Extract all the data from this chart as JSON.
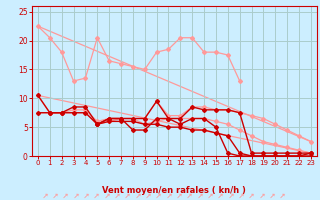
{
  "bg_color": "#cceeff",
  "grid_color": "#aacccc",
  "line_color_dark": "#cc0000",
  "line_color_light": "#ff9999",
  "xlabel": "Vent moyen/en rafales ( kn/h )",
  "xlim": [
    -0.5,
    23.5
  ],
  "ylim": [
    0,
    26
  ],
  "yticks": [
    0,
    5,
    10,
    15,
    20,
    25
  ],
  "xticks": [
    0,
    1,
    2,
    3,
    4,
    5,
    6,
    7,
    8,
    9,
    10,
    11,
    12,
    13,
    14,
    15,
    16,
    17,
    18,
    19,
    20,
    21,
    22,
    23
  ],
  "trend1_x": [
    0,
    23
  ],
  "trend1_y": [
    22.5,
    2.5
  ],
  "trend2_x": [
    0,
    23
  ],
  "trend2_y": [
    10.5,
    0.5
  ],
  "light_curve1_x": [
    0,
    1,
    2,
    3,
    4,
    5,
    6,
    7,
    8,
    9,
    10,
    11,
    12,
    13,
    14,
    15,
    16,
    17
  ],
  "light_curve1_y": [
    22.5,
    20.5,
    18.0,
    13.0,
    13.5,
    20.5,
    16.5,
    16.0,
    15.5,
    15.0,
    18.0,
    18.5,
    20.5,
    20.5,
    18.0,
    18.0,
    17.5,
    13.0
  ],
  "dark_curve1_x": [
    0,
    1,
    2,
    3,
    4,
    5,
    6,
    7,
    8,
    9,
    10,
    11,
    12,
    13,
    14,
    15,
    16,
    17,
    18,
    19,
    20,
    21,
    22,
    23
  ],
  "dark_curve1_y": [
    10.5,
    7.5,
    7.5,
    8.5,
    8.5,
    5.5,
    6.5,
    6.5,
    6.5,
    6.5,
    9.5,
    6.5,
    6.5,
    8.5,
    8.0,
    8.0,
    8.0,
    7.5,
    0.5,
    0.5,
    0.5,
    0.5,
    0.5,
    0.5
  ],
  "dark_curve2_x": [
    5,
    6,
    7,
    8,
    9,
    10,
    11,
    12,
    13,
    14,
    15,
    16,
    17,
    18,
    19,
    20,
    21,
    22,
    23
  ],
  "dark_curve2_y": [
    5.5,
    6.5,
    6.5,
    4.5,
    4.5,
    6.5,
    6.5,
    5.5,
    6.5,
    6.5,
    5.0,
    0.5,
    0.0,
    0.0,
    0.0,
    0.0,
    0.0,
    0.0,
    0.0
  ],
  "dark_curve3_x": [
    0,
    1,
    2,
    3,
    4,
    5,
    6,
    7,
    8,
    9,
    10,
    11,
    12,
    13,
    14,
    15,
    16,
    17,
    18,
    19,
    20,
    21,
    22,
    23
  ],
  "dark_curve3_y": [
    7.5,
    7.5,
    7.5,
    7.5,
    7.5,
    5.5,
    6.0,
    6.0,
    6.0,
    5.5,
    5.5,
    5.0,
    5.0,
    4.5,
    4.5,
    4.0,
    3.5,
    0.5,
    0.0,
    0.0,
    0.0,
    0.0,
    0.0,
    0.5
  ],
  "light_curve2_x": [
    0,
    1,
    2,
    3,
    4,
    5,
    6,
    7,
    8,
    9,
    10,
    11,
    12,
    13,
    14,
    15,
    16,
    17,
    18,
    19,
    20,
    21,
    22,
    23
  ],
  "light_curve2_y": [
    10.5,
    7.5,
    7.5,
    8.0,
    8.0,
    6.0,
    6.5,
    6.5,
    6.5,
    6.5,
    9.5,
    7.0,
    7.0,
    8.5,
    8.5,
    8.0,
    8.0,
    7.5,
    7.0,
    6.5,
    5.5,
    4.5,
    3.5,
    2.5
  ],
  "light_curve3_x": [
    0,
    1,
    2,
    3,
    4,
    5,
    6,
    7,
    8,
    9,
    10,
    11,
    12,
    13,
    14,
    15,
    16,
    17,
    18,
    19,
    20,
    21,
    22,
    23
  ],
  "light_curve3_y": [
    7.5,
    7.5,
    7.5,
    7.5,
    7.5,
    5.5,
    6.0,
    6.5,
    6.5,
    5.5,
    6.0,
    6.5,
    6.5,
    6.5,
    6.5,
    6.0,
    5.5,
    4.5,
    3.5,
    2.5,
    2.0,
    1.5,
    1.0,
    0.5
  ]
}
